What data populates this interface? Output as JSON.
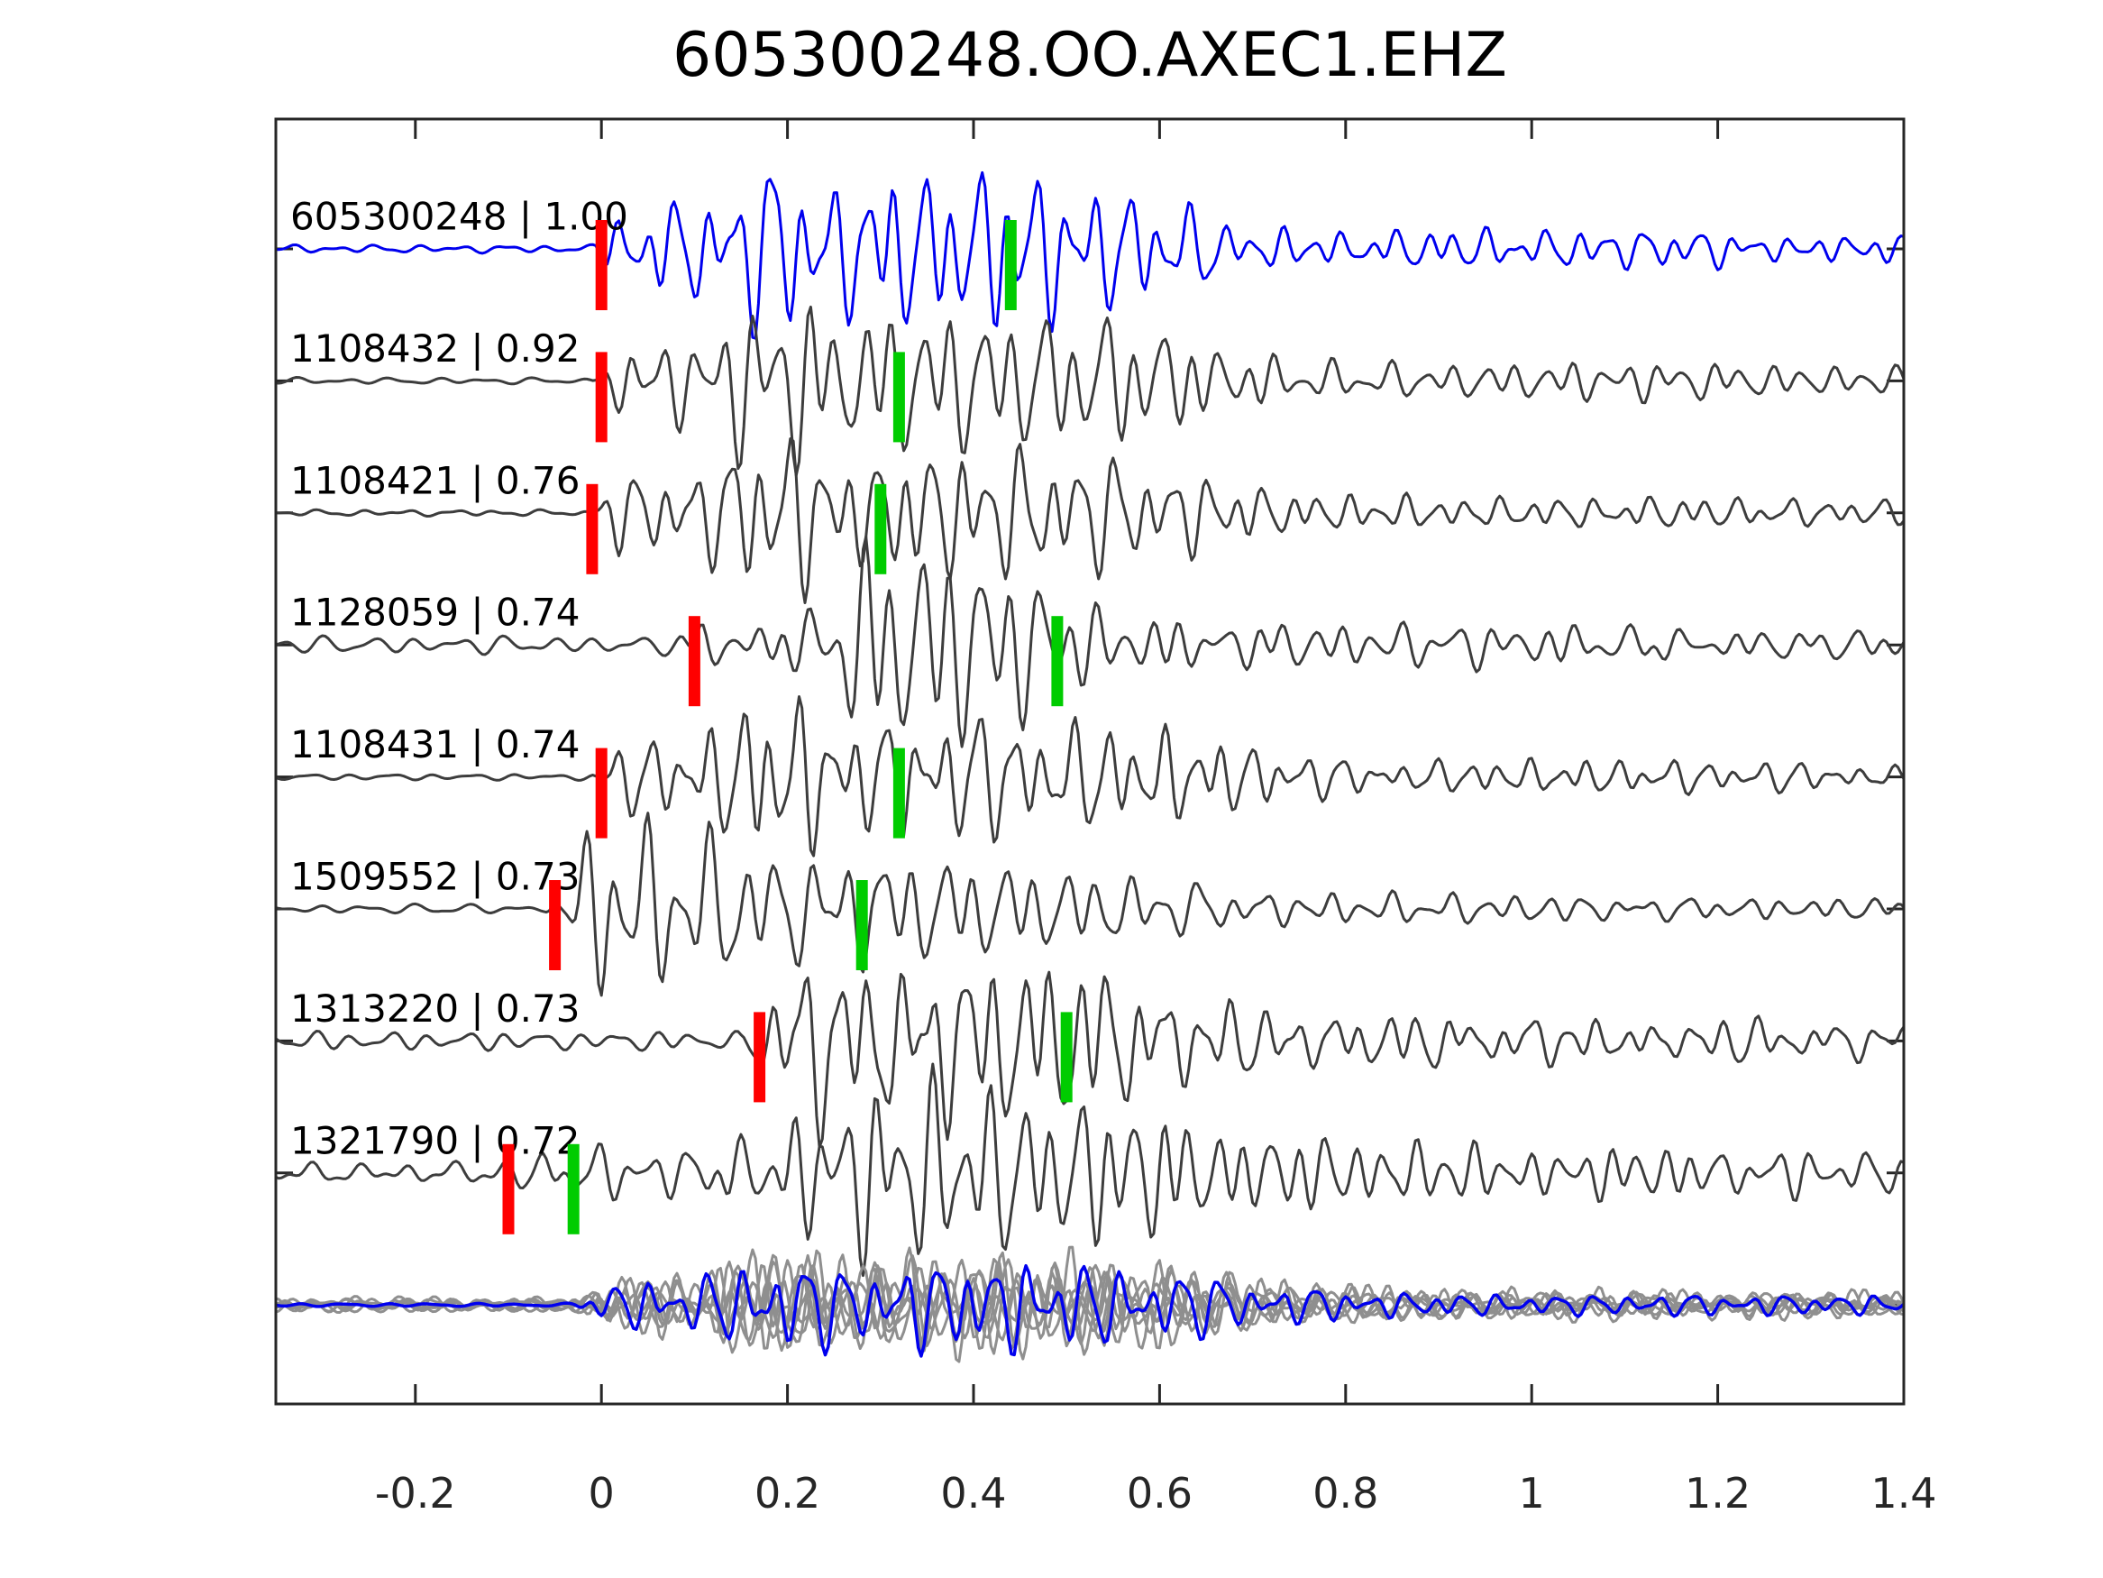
{
  "title": "605300248.OO.AXEC1.EHZ",
  "chart_data": {
    "type": "line",
    "kind": "seismic-waveform-correlation-stack",
    "title": "605300248.OO.AXEC1.EHZ",
    "xlabel": "",
    "ylabel": "",
    "x_range": [
      -0.35,
      1.4
    ],
    "grid": false,
    "legend": "none",
    "x_ticks": [
      {
        "label": "-0.2",
        "value": -0.2
      },
      {
        "label": "0",
        "value": 0
      },
      {
        "label": "0.2",
        "value": 0.2
      },
      {
        "label": "0.4",
        "value": 0.4
      },
      {
        "label": "0.6",
        "value": 0.6
      },
      {
        "label": "0.8",
        "value": 0.8
      },
      {
        "label": "1",
        "value": 1.0
      },
      {
        "label": "1.2",
        "value": 1.2
      },
      {
        "label": "1.4",
        "value": 1.4
      }
    ],
    "colors": {
      "reference_trace": "#0000ee",
      "candidate_trace": "#3d3d3d",
      "overlay_gray": "#8f8f8f",
      "pick_red": "#ff0000",
      "pick_green": "#00cc00",
      "frame": "#262626",
      "text": "#000000"
    },
    "traces": [
      {
        "id": "605300248",
        "correlation": "1.00",
        "label": "605300248 | 1.00",
        "color": "reference",
        "red_pick": 0.0,
        "green_pick": 0.44,
        "synth": {
          "seed": 11,
          "noise": 5,
          "env": [
            [
              -0.35,
              0
            ],
            [
              -0.01,
              0
            ],
            [
              0.02,
              40
            ],
            [
              0.06,
              60
            ],
            [
              0.13,
              70
            ],
            [
              0.19,
              135
            ],
            [
              0.24,
              75
            ],
            [
              0.3,
              110
            ],
            [
              0.36,
              100
            ],
            [
              0.44,
              110
            ],
            [
              0.52,
              85
            ],
            [
              0.6,
              70
            ],
            [
              0.68,
              30
            ],
            [
              0.8,
              22
            ],
            [
              0.95,
              25
            ],
            [
              1.1,
              26
            ],
            [
              1.25,
              18
            ],
            [
              1.4,
              16
            ]
          ]
        }
      },
      {
        "id": "1108432",
        "correlation": "0.92",
        "label": "1108432 | 0.92",
        "color": "candidate",
        "red_pick": 0.0,
        "green_pick": 0.32,
        "synth": {
          "seed": 22,
          "noise": 4,
          "env": [
            [
              -0.35,
              0
            ],
            [
              -0.01,
              0
            ],
            [
              0.03,
              55
            ],
            [
              0.1,
              60
            ],
            [
              0.19,
              130
            ],
            [
              0.26,
              80
            ],
            [
              0.33,
              100
            ],
            [
              0.42,
              95
            ],
            [
              0.5,
              85
            ],
            [
              0.58,
              80
            ],
            [
              0.66,
              45
            ],
            [
              0.76,
              25
            ],
            [
              0.9,
              20
            ],
            [
              1.05,
              24
            ],
            [
              1.2,
              22
            ],
            [
              1.4,
              16
            ]
          ]
        }
      },
      {
        "id": "1108421",
        "correlation": "0.76",
        "label": "1108421 | 0.76",
        "color": "candidate",
        "red_pick": -0.01,
        "green_pick": 0.3,
        "synth": {
          "seed": 33,
          "noise": 4,
          "env": [
            [
              -0.35,
              0
            ],
            [
              -0.02,
              0
            ],
            [
              0.02,
              50
            ],
            [
              0.1,
              55
            ],
            [
              0.19,
              125
            ],
            [
              0.26,
              70
            ],
            [
              0.34,
              85
            ],
            [
              0.44,
              85
            ],
            [
              0.54,
              75
            ],
            [
              0.62,
              55
            ],
            [
              0.72,
              30
            ],
            [
              0.85,
              22
            ],
            [
              1.0,
              20
            ],
            [
              1.2,
              18
            ],
            [
              1.4,
              15
            ]
          ]
        }
      },
      {
        "id": "1128059",
        "correlation": "0.74",
        "label": "1128059 | 0.74",
        "color": "candidate",
        "red_pick": 0.1,
        "green_pick": 0.49,
        "synth": {
          "seed": 44,
          "noise": 11,
          "env": [
            [
              -0.35,
              0
            ],
            [
              0.08,
              2
            ],
            [
              0.11,
              30
            ],
            [
              0.16,
              25
            ],
            [
              0.21,
              35
            ],
            [
              0.25,
              90
            ],
            [
              0.3,
              135
            ],
            [
              0.4,
              130
            ],
            [
              0.46,
              90
            ],
            [
              0.52,
              50
            ],
            [
              0.6,
              35
            ],
            [
              0.72,
              28
            ],
            [
              0.9,
              22
            ],
            [
              1.1,
              20
            ],
            [
              1.4,
              16
            ]
          ]
        }
      },
      {
        "id": "1108431",
        "correlation": "0.74",
        "label": "1108431 | 0.74",
        "color": "candidate",
        "red_pick": 0.0,
        "green_pick": 0.32,
        "synth": {
          "seed": 55,
          "noise": 4,
          "env": [
            [
              -0.35,
              0
            ],
            [
              -0.01,
              0
            ],
            [
              0.03,
              50
            ],
            [
              0.1,
              55
            ],
            [
              0.19,
              125
            ],
            [
              0.26,
              70
            ],
            [
              0.34,
              80
            ],
            [
              0.44,
              80
            ],
            [
              0.54,
              70
            ],
            [
              0.64,
              55
            ],
            [
              0.74,
              28
            ],
            [
              0.88,
              20
            ],
            [
              1.05,
              24
            ],
            [
              1.25,
              18
            ],
            [
              1.4,
              15
            ]
          ]
        }
      },
      {
        "id": "1509552",
        "correlation": "0.73",
        "label": "1509552 | 0.73",
        "color": "candidate",
        "red_pick": -0.05,
        "green_pick": 0.28,
        "synth": {
          "seed": 66,
          "noise": 6,
          "env": [
            [
              -0.35,
              0
            ],
            [
              -0.06,
              0
            ],
            [
              -0.03,
              80
            ],
            [
              0.01,
              130
            ],
            [
              0.06,
              110
            ],
            [
              0.12,
              95
            ],
            [
              0.2,
              70
            ],
            [
              0.28,
              80
            ],
            [
              0.38,
              65
            ],
            [
              0.48,
              55
            ],
            [
              0.58,
              40
            ],
            [
              0.7,
              25
            ],
            [
              0.9,
              18
            ],
            [
              1.1,
              16
            ],
            [
              1.4,
              13
            ]
          ]
        }
      },
      {
        "id": "1313220",
        "correlation": "0.73",
        "label": "1313220 | 0.73",
        "color": "candidate",
        "red_pick": 0.17,
        "green_pick": 0.5,
        "synth": {
          "seed": 77,
          "noise": 12,
          "env": [
            [
              -0.35,
              0
            ],
            [
              0.15,
              2
            ],
            [
              0.19,
              70
            ],
            [
              0.23,
              125
            ],
            [
              0.3,
              100
            ],
            [
              0.37,
              110
            ],
            [
              0.45,
              105
            ],
            [
              0.53,
              100
            ],
            [
              0.6,
              70
            ],
            [
              0.7,
              40
            ],
            [
              0.85,
              30
            ],
            [
              1.0,
              28
            ],
            [
              1.2,
              24
            ],
            [
              1.4,
              20
            ]
          ]
        }
      },
      {
        "id": "1321790",
        "correlation": "0.72",
        "label": "1321790 | 0.72",
        "color": "candidate",
        "red_pick": -0.1,
        "green_pick": -0.03,
        "synth": {
          "seed": 88,
          "noise": 13,
          "env": [
            [
              -0.35,
              0
            ],
            [
              -0.11,
              2
            ],
            [
              -0.07,
              28
            ],
            [
              0.0,
              25
            ],
            [
              0.1,
              30
            ],
            [
              0.18,
              40
            ],
            [
              0.25,
              95
            ],
            [
              0.32,
              130
            ],
            [
              0.4,
              110
            ],
            [
              0.5,
              100
            ],
            [
              0.6,
              85
            ],
            [
              0.7,
              55
            ],
            [
              0.85,
              45
            ],
            [
              1.0,
              35
            ],
            [
              1.2,
              30
            ],
            [
              1.4,
              24
            ]
          ]
        }
      }
    ],
    "overlay": {
      "description": "all aligned traces overlaid: gray members with blue reference on top",
      "gray_count": 7,
      "synth": {
        "seed": 99,
        "noise": 2,
        "env": [
          [
            -0.35,
            0
          ],
          [
            -0.03,
            0
          ],
          [
            0.02,
            28
          ],
          [
            0.1,
            32
          ],
          [
            0.19,
            60
          ],
          [
            0.27,
            45
          ],
          [
            0.35,
            55
          ],
          [
            0.44,
            55
          ],
          [
            0.52,
            48
          ],
          [
            0.6,
            42
          ],
          [
            0.7,
            25
          ],
          [
            0.85,
            15
          ],
          [
            1.0,
            13
          ],
          [
            1.2,
            12
          ],
          [
            1.4,
            10
          ]
        ]
      }
    }
  }
}
